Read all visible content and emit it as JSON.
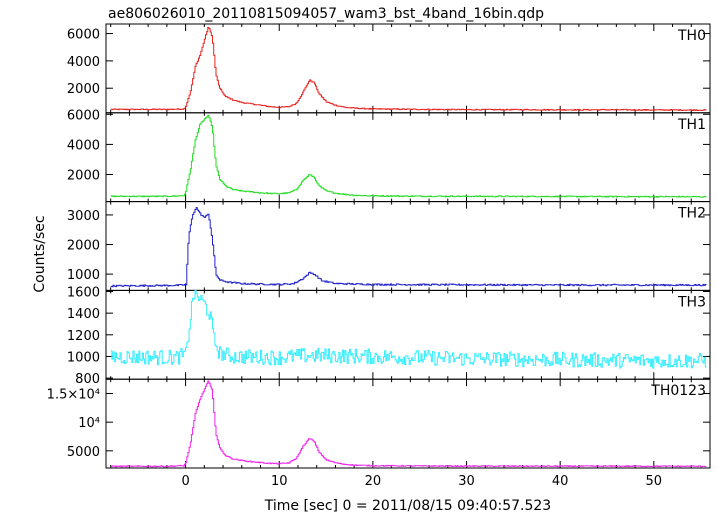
{
  "chart_data": {
    "type": "line",
    "title": "ae806026010_20110815094057_wam3_bst_4band_16bin.qdp",
    "xlabel": "Time [sec] 0 = 2011/08/15 09:40:57.523",
    "ylabel": "Counts/sec",
    "xlim": [
      -8.5,
      56
    ],
    "x_ticks": [
      0,
      10,
      20,
      30,
      40,
      50
    ],
    "x_tick_labels": [
      "0",
      "10",
      "20",
      "30",
      "40",
      "50"
    ],
    "panels": [
      {
        "name": "TH0",
        "color": "#e8231f",
        "ylim": [
          200,
          6700
        ],
        "y_ticks": [
          2000,
          4000,
          6000
        ],
        "y_tick_labels": [
          "2000",
          "4000",
          "6000"
        ],
        "points": [
          [
            -8,
            450
          ],
          [
            -2,
            450
          ],
          [
            -0.2,
            480
          ],
          [
            0,
            700
          ],
          [
            0.5,
            1800
          ],
          [
            1,
            3600
          ],
          [
            1.5,
            4400
          ],
          [
            2,
            5600
          ],
          [
            2.4,
            6500
          ],
          [
            2.8,
            5800
          ],
          [
            3.2,
            3000
          ],
          [
            3.6,
            2000
          ],
          [
            4.2,
            1400
          ],
          [
            5,
            1150
          ],
          [
            6,
            950
          ],
          [
            7,
            850
          ],
          [
            8,
            750
          ],
          [
            9,
            650
          ],
          [
            10,
            600
          ],
          [
            11,
            650
          ],
          [
            11.8,
            900
          ],
          [
            12.5,
            1700
          ],
          [
            13.2,
            2600
          ],
          [
            13.7,
            2400
          ],
          [
            14.2,
            1600
          ],
          [
            15,
            1000
          ],
          [
            16,
            750
          ],
          [
            17,
            600
          ],
          [
            18,
            540
          ],
          [
            20,
            480
          ],
          [
            25,
            450
          ],
          [
            30,
            430
          ],
          [
            35,
            430
          ],
          [
            40,
            420
          ],
          [
            45,
            420
          ],
          [
            50,
            410
          ],
          [
            55.5,
            400
          ]
        ],
        "noise": 35
      },
      {
        "name": "TH1",
        "color": "#22dd22",
        "ylim": [
          200,
          6100
        ],
        "y_ticks": [
          2000,
          4000,
          6000
        ],
        "y_tick_labels": [
          "2000",
          "4000",
          "6000"
        ],
        "points": [
          [
            -8,
            550
          ],
          [
            -2,
            550
          ],
          [
            -0.2,
            600
          ],
          [
            0,
            900
          ],
          [
            0.5,
            2400
          ],
          [
            1,
            4300
          ],
          [
            1.5,
            5300
          ],
          [
            2,
            5700
          ],
          [
            2.4,
            5900
          ],
          [
            2.8,
            5200
          ],
          [
            3.2,
            2600
          ],
          [
            3.6,
            1700
          ],
          [
            4.2,
            1250
          ],
          [
            5,
            1000
          ],
          [
            6,
            900
          ],
          [
            7,
            850
          ],
          [
            8,
            780
          ],
          [
            9,
            740
          ],
          [
            10,
            730
          ],
          [
            11,
            780
          ],
          [
            11.8,
            1000
          ],
          [
            12.5,
            1600
          ],
          [
            13.2,
            2000
          ],
          [
            13.7,
            1800
          ],
          [
            14.2,
            1250
          ],
          [
            15,
            900
          ],
          [
            16,
            760
          ],
          [
            17,
            680
          ],
          [
            18,
            620
          ],
          [
            20,
            580
          ],
          [
            25,
            560
          ],
          [
            30,
            550
          ],
          [
            40,
            540
          ],
          [
            50,
            530
          ],
          [
            55.5,
            520
          ]
        ],
        "noise": 35
      },
      {
        "name": "TH2",
        "color": "#2222cc",
        "ylim": [
          450,
          3450
        ],
        "y_ticks": [
          1000,
          2000,
          3000
        ],
        "y_tick_labels": [
          "1000",
          "2000",
          "3000"
        ],
        "points": [
          [
            -8,
            600
          ],
          [
            -1,
            620
          ],
          [
            0,
            640
          ],
          [
            0.3,
            2300
          ],
          [
            0.7,
            3000
          ],
          [
            1.1,
            3250
          ],
          [
            1.5,
            3050
          ],
          [
            2,
            2900
          ],
          [
            2.4,
            3050
          ],
          [
            2.8,
            2200
          ],
          [
            3.2,
            1000
          ],
          [
            3.6,
            800
          ],
          [
            4.5,
            730
          ],
          [
            6,
            680
          ],
          [
            8,
            660
          ],
          [
            10,
            650
          ],
          [
            11.5,
            680
          ],
          [
            12.5,
            850
          ],
          [
            13.2,
            1050
          ],
          [
            13.7,
            1000
          ],
          [
            14.5,
            780
          ],
          [
            16,
            680
          ],
          [
            20,
            650
          ],
          [
            30,
            640
          ],
          [
            40,
            630
          ],
          [
            50,
            630
          ],
          [
            55.5,
            630
          ]
        ],
        "noise": 25
      },
      {
        "name": "TH3",
        "color": "#33eeff",
        "ylim": [
          790,
          1610
        ],
        "y_ticks": [
          800,
          1000,
          1200,
          1400,
          1600
        ],
        "y_tick_labels": [
          "800",
          "1000",
          "1200",
          "1400",
          "1600"
        ],
        "points": [
          [
            -8,
            1000
          ],
          [
            -1,
            990
          ],
          [
            0,
            1020
          ],
          [
            0.4,
            1300
          ],
          [
            0.8,
            1580
          ],
          [
            1.2,
            1560
          ],
          [
            2,
            1480
          ],
          [
            2.6,
            1380
          ],
          [
            3,
            1150
          ],
          [
            3.6,
            1030
          ],
          [
            5,
            1000
          ],
          [
            10,
            990
          ],
          [
            13,
            1010
          ],
          [
            20,
            1000
          ],
          [
            30,
            980
          ],
          [
            40,
            970
          ],
          [
            50,
            960
          ],
          [
            55.5,
            960
          ]
        ],
        "noise": 70
      },
      {
        "name": "TH0123",
        "color": "#ee22ee",
        "ylim": [
          2000,
          17500
        ],
        "y_ticks": [
          5000,
          10000,
          15000
        ],
        "y_tick_labels": [
          "5000",
          "10⁴",
          "1.5×10⁴"
        ],
        "points": [
          [
            -8,
            2300
          ],
          [
            -2,
            2300
          ],
          [
            -0.2,
            2400
          ],
          [
            0,
            3000
          ],
          [
            0.5,
            6500
          ],
          [
            1,
            11500
          ],
          [
            1.5,
            14000
          ],
          [
            2,
            15800
          ],
          [
            2.4,
            17200
          ],
          [
            2.8,
            15500
          ],
          [
            3.2,
            8000
          ],
          [
            3.6,
            5500
          ],
          [
            4.2,
            4200
          ],
          [
            5,
            3600
          ],
          [
            6,
            3300
          ],
          [
            7,
            3100
          ],
          [
            8,
            2950
          ],
          [
            9,
            2800
          ],
          [
            10,
            2750
          ],
          [
            11,
            2900
          ],
          [
            11.8,
            3700
          ],
          [
            12.5,
            5800
          ],
          [
            13.2,
            7200
          ],
          [
            13.7,
            6600
          ],
          [
            14.2,
            4800
          ],
          [
            15,
            3400
          ],
          [
            16,
            2900
          ],
          [
            17,
            2650
          ],
          [
            18,
            2500
          ],
          [
            20,
            2400
          ],
          [
            25,
            2350
          ],
          [
            30,
            2330
          ],
          [
            40,
            2320
          ],
          [
            50,
            2310
          ],
          [
            55.5,
            2300
          ]
        ],
        "noise": 80
      }
    ]
  }
}
